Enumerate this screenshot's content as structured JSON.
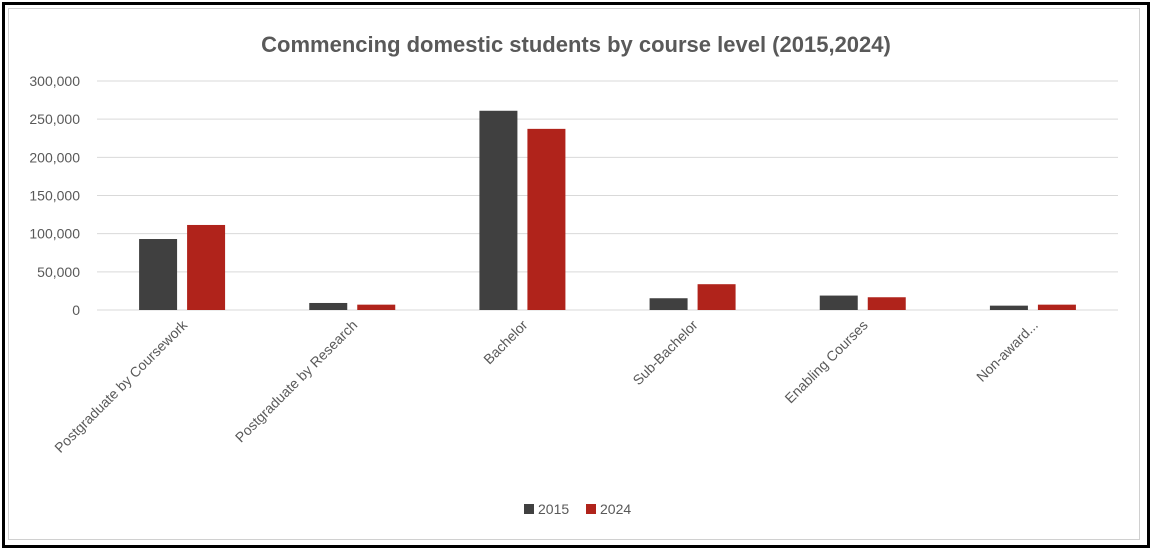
{
  "chart_data": {
    "type": "bar",
    "title": "Commencing domestic students by course level (2015,2024)",
    "xlabel": "",
    "ylabel": "",
    "ylim": [
      0,
      300000
    ],
    "yticks": [
      0,
      50000,
      100000,
      150000,
      200000,
      250000,
      300000
    ],
    "ytick_labels": [
      "0",
      "50,000",
      "100,000",
      "150,000",
      "200,000",
      "250,000",
      "300,000"
    ],
    "grid": true,
    "legend_position": "bottom",
    "categories": [
      "Postgraduate by Coursework",
      "Postgraduate by Research",
      "Bachelor",
      "Sub-Bachelor",
      "Enabling Courses",
      "Non-award..."
    ],
    "series": [
      {
        "name": "2015",
        "color": "#404040",
        "values": [
          93000,
          9200,
          261000,
          15400,
          18900,
          5700
        ]
      },
      {
        "name": "2024",
        "color": "#b0231b",
        "values": [
          111400,
          7000,
          237300,
          33800,
          16700,
          7000
        ]
      }
    ]
  }
}
